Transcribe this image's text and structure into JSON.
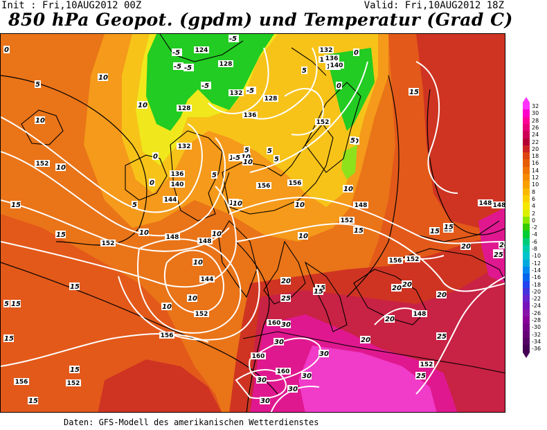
{
  "header": {
    "init": "Init : Fri,10AUG2012 00Z",
    "valid": "Valid: Fri,10AUG2012 18Z",
    "title": "850 hPa Geopot. (gpdm) und Temperatur (Grad C)"
  },
  "footer": "Daten: GFS-Modell des amerikanischen Wetterdienstes",
  "colorbar": {
    "labels": [
      "32",
      "30",
      "28",
      "26",
      "24",
      "22",
      "20",
      "18",
      "16",
      "14",
      "12",
      "10",
      "8",
      "6",
      "4",
      "2",
      "0",
      "-2",
      "-4",
      "-6",
      "-8",
      "-10",
      "-12",
      "-14",
      "-16",
      "-18",
      "-20",
      "-22",
      "-24",
      "-26",
      "-28",
      "-30",
      "-32",
      "-34",
      "-36"
    ],
    "colors": [
      "#ff33ff",
      "#ff00cc",
      "#ff0099",
      "#e6007a",
      "#cc0055",
      "#b30033",
      "#cc2222",
      "#dd4411",
      "#e65c00",
      "#f07300",
      "#f58a00",
      "#f9a000",
      "#fbb800",
      "#fcd000",
      "#f5e600",
      "#d9f000",
      "#8ce600",
      "#33cc00",
      "#00cc33",
      "#00cc77",
      "#00ccaa",
      "#00c4cc",
      "#00aadd",
      "#0088ee",
      "#0066ee",
      "#2244ee",
      "#4433dd",
      "#6622cc",
      "#7711bb",
      "#8811aa",
      "#880099",
      "#770088",
      "#660077",
      "#550066",
      "#440055"
    ]
  },
  "map": {
    "colors": {
      "t10": "#ea7418",
      "t15": "#e3591a",
      "t20": "#cf3422",
      "t25": "#c82244",
      "t30": "#e0188f",
      "tpink": "#f03cc8",
      "t5": "#f59a1a",
      "t0": "#f7c319",
      "tm": "#f0e81c",
      "green": "#22cc22",
      "lgreen": "#8ee21c",
      "iso": "#ffffff",
      "coast": "#000000"
    },
    "geopot_labels": [
      {
        "t": "124"
      },
      {
        "t": "128"
      },
      {
        "t": "132"
      },
      {
        "t": "136"
      },
      {
        "t": "128"
      },
      {
        "t": "132"
      },
      {
        "t": "136"
      },
      {
        "t": "140"
      },
      {
        "t": "128"
      },
      {
        "t": "132"
      },
      {
        "t": "136"
      },
      {
        "t": "140"
      },
      {
        "t": "144"
      },
      {
        "t": "148"
      },
      {
        "t": "152"
      },
      {
        "t": "156"
      },
      {
        "t": "152"
      },
      {
        "t": "148"
      },
      {
        "t": "152"
      },
      {
        "t": "156"
      },
      {
        "t": "152"
      },
      {
        "t": "148"
      },
      {
        "t": "148"
      },
      {
        "t": "144"
      },
      {
        "t": "152"
      },
      {
        "t": "156"
      },
      {
        "t": "156"
      },
      {
        "t": "160"
      },
      {
        "t": "160"
      },
      {
        "t": "160"
      },
      {
        "t": "152"
      },
      {
        "t": "152"
      },
      {
        "t": "152"
      },
      {
        "t": "148"
      },
      {
        "t": "148"
      },
      {
        "t": "156"
      },
      {
        "t": "132"
      },
      {
        "t": "136"
      },
      {
        "t": "140"
      }
    ],
    "temp_labels": [
      {
        "t": "0"
      },
      {
        "t": "5"
      },
      {
        "t": "10"
      },
      {
        "t": "10"
      },
      {
        "t": "10"
      },
      {
        "t": "10"
      },
      {
        "t": "5"
      },
      {
        "t": "0"
      },
      {
        "t": "0"
      },
      {
        "t": "10"
      },
      {
        "t": "15"
      },
      {
        "t": "15"
      },
      {
        "t": "15"
      },
      {
        "t": "15"
      },
      {
        "t": "5"
      },
      {
        "t": "15"
      },
      {
        "t": "15"
      },
      {
        "t": "15"
      },
      {
        "t": "10"
      },
      {
        "t": "10"
      },
      {
        "t": "10"
      },
      {
        "t": "10"
      },
      {
        "t": "10"
      },
      {
        "t": "10"
      },
      {
        "t": "5"
      },
      {
        "t": "5"
      },
      {
        "t": "5"
      },
      {
        "t": "10"
      },
      {
        "t": "10"
      },
      {
        "t": "10"
      },
      {
        "t": "15"
      },
      {
        "t": "20"
      },
      {
        "t": "25"
      },
      {
        "t": "20"
      },
      {
        "t": "30"
      },
      {
        "t": "30"
      },
      {
        "t": "30"
      },
      {
        "t": "30"
      },
      {
        "t": "30"
      },
      {
        "t": "30"
      },
      {
        "t": "30"
      },
      {
        "t": "25"
      },
      {
        "t": "25"
      },
      {
        "t": "20"
      },
      {
        "t": "20"
      },
      {
        "t": "20"
      },
      {
        "t": "25"
      },
      {
        "t": "20"
      },
      {
        "t": "15"
      },
      {
        "t": "15"
      },
      {
        "t": "10"
      },
      {
        "t": "20"
      },
      {
        "t": "20"
      },
      {
        "t": "25"
      },
      {
        "t": "10"
      },
      {
        "t": "15"
      },
      {
        "t": "5"
      },
      {
        "t": "5"
      },
      {
        "t": "-5"
      },
      {
        "t": "-5"
      },
      {
        "t": "-5"
      },
      {
        "t": "-5"
      },
      {
        "t": "-5"
      },
      {
        "t": "0"
      },
      {
        "t": "0"
      },
      {
        "t": "0"
      },
      {
        "t": "-5"
      },
      {
        "t": "10"
      },
      {
        "t": "15"
      },
      {
        "t": "15"
      },
      {
        "t": "5"
      },
      {
        "t": "15"
      },
      {
        "t": "-5"
      }
    ]
  }
}
